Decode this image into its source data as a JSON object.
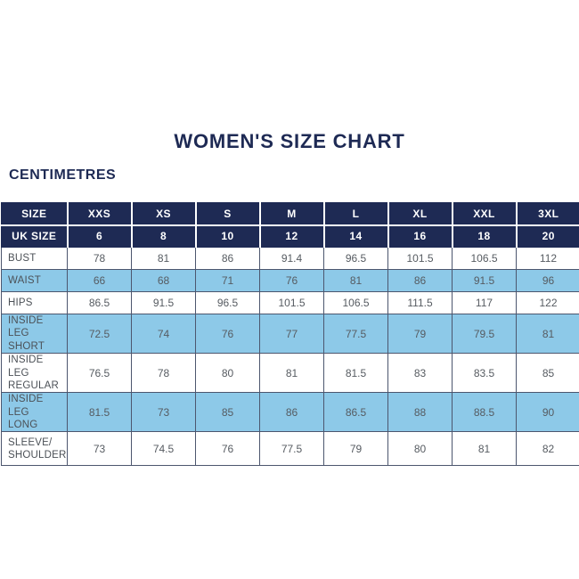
{
  "page": {
    "title": "WOMEN'S SIZE CHART",
    "unit_label": "CENTIMETRES"
  },
  "colors": {
    "navy": "#1e2a54",
    "light_blue": "#8dc9e8",
    "header_text": "#ffffff",
    "body_text": "#565b61",
    "grid_line": "#4c566e"
  },
  "chart_data": {
    "type": "table",
    "title": "WOMEN'S SIZE CHART",
    "unit": "CENTIMETRES",
    "header_rows": [
      {
        "label": "SIZE",
        "values": [
          "XXS",
          "XS",
          "S",
          "M",
          "L",
          "XL",
          "XXL",
          "3XL"
        ]
      },
      {
        "label": "UK SIZE",
        "values": [
          "6",
          "8",
          "10",
          "12",
          "14",
          "16",
          "18",
          "20"
        ]
      }
    ],
    "body_rows": [
      {
        "label_lines": [
          "BUST"
        ],
        "shaded": false,
        "values": [
          "78",
          "81",
          "86",
          "91.4",
          "96.5",
          "101.5",
          "106.5",
          "112"
        ]
      },
      {
        "label_lines": [
          "WAIST"
        ],
        "shaded": true,
        "values": [
          "66",
          "68",
          "71",
          "76",
          "81",
          "86",
          "91.5",
          "96"
        ]
      },
      {
        "label_lines": [
          "HIPS"
        ],
        "shaded": false,
        "values": [
          "86.5",
          "91.5",
          "96.5",
          "101.5",
          "106.5",
          "111.5",
          "117",
          "122"
        ]
      },
      {
        "label_lines": [
          "INSIDE LEG",
          "SHORT"
        ],
        "shaded": true,
        "values": [
          "72.5",
          "74",
          "76",
          "77",
          "77.5",
          "79",
          "79.5",
          "81"
        ]
      },
      {
        "label_lines": [
          "INSIDE LEG",
          "REGULAR"
        ],
        "shaded": false,
        "values": [
          "76.5",
          "78",
          "80",
          "81",
          "81.5",
          "83",
          "83.5",
          "85"
        ]
      },
      {
        "label_lines": [
          "INSIDE LEG",
          "LONG"
        ],
        "shaded": true,
        "values": [
          "81.5",
          "73",
          "85",
          "86",
          "86.5",
          "88",
          "88.5",
          "90"
        ]
      },
      {
        "label_lines": [
          "SLEEVE/",
          "SHOULDER"
        ],
        "shaded": false,
        "values": [
          "73",
          "74.5",
          "76",
          "77.5",
          "79",
          "80",
          "81",
          "82"
        ]
      }
    ]
  }
}
